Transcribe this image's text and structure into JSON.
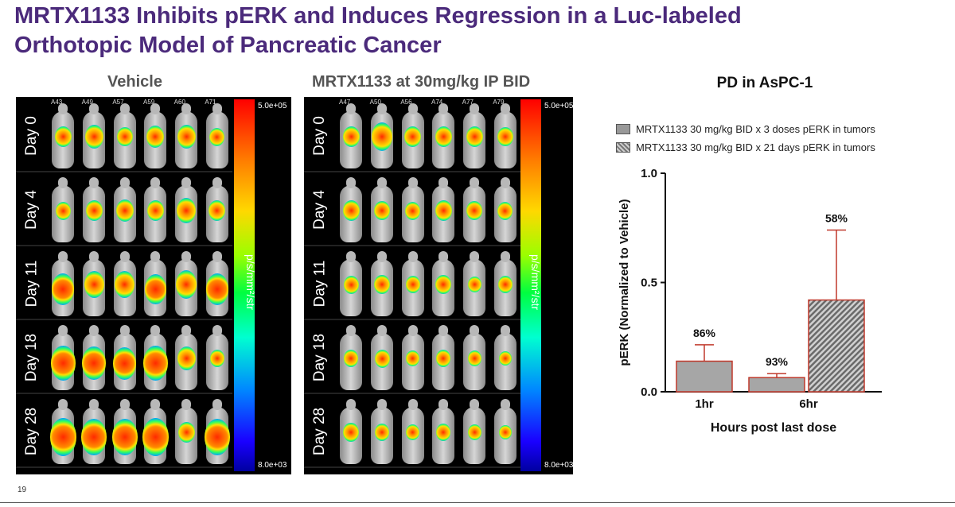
{
  "title": {
    "line1": "MRTX1133 Inhibits pERK and Induces Regression in a Luc-labeled",
    "line2": "Orthotopic Model of Pancreatic Cancer"
  },
  "imaging": {
    "vehicle": {
      "title": "Vehicle",
      "mouse_ids": [
        "A43",
        "A49",
        "A57",
        "A59",
        "A60",
        "A71"
      ]
    },
    "treated": {
      "title": "MRTX1133 at 30mg/kg IP BID",
      "mouse_ids": [
        "A47",
        "A50",
        "A56",
        "A74",
        "A77",
        "A79"
      ]
    },
    "days": [
      "Day 0",
      "Day 4",
      "Day 11",
      "Day 18",
      "Day 28"
    ],
    "colorbar": {
      "max": "5.0e+05",
      "min": "8.0e+03",
      "unit": "p/s/mm²/str"
    }
  },
  "chart_data": {
    "type": "bar",
    "title": "PD in AsPC-1",
    "xlabel": "Hours post last dose",
    "ylabel": "pERK (Normalized to Vehicle)",
    "ylim": [
      0,
      1.0
    ],
    "yticks": [
      "0.0",
      "0.5",
      "1.0"
    ],
    "categories": [
      "1hr",
      "6hr"
    ],
    "series": [
      {
        "name": "MRTX1133 30 mg/kg BID x 3 doses  pERK in tumors",
        "pattern": "solid",
        "bars": [
          {
            "category": "1hr",
            "value": 0.14,
            "error": 0.075,
            "label": "86%"
          },
          {
            "category": "6hr",
            "value": 0.065,
            "error": 0.018,
            "label": "93%"
          }
        ]
      },
      {
        "name": "MRTX1133 30 mg/kg BID x 21 days pERK in tumors",
        "pattern": "hatched",
        "bars": [
          {
            "category": "6hr",
            "value": 0.42,
            "error": 0.32,
            "label": "58%"
          }
        ]
      }
    ]
  },
  "page_number": "19"
}
